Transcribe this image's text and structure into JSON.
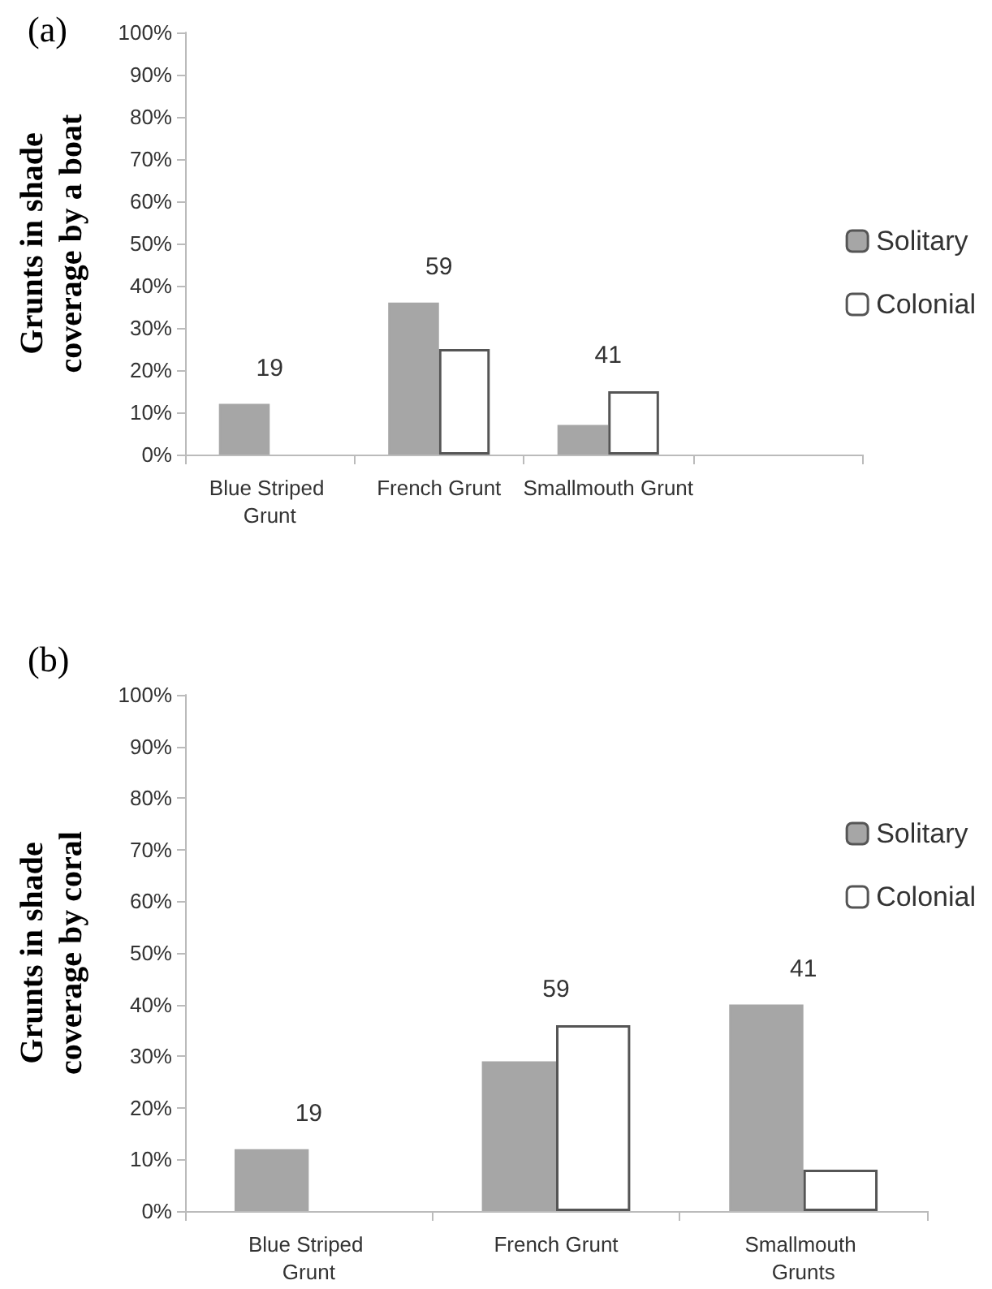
{
  "chart_data": [
    {
      "type": "bar",
      "title": "(a)",
      "ylabel": "Grunts in shade coverage by a boat",
      "categories": [
        "Blue Striped Grunt",
        "French Grunt",
        "Smallmouth Grunt",
        null
      ],
      "series": [
        {
          "name": "Solitary",
          "color": "#a6a6a6",
          "values": [
            12,
            36,
            7,
            null
          ]
        },
        {
          "name": "Colonial",
          "color": "#ffffff",
          "values": [
            null,
            25,
            15,
            null
          ]
        }
      ],
      "ylim": [
        0,
        100
      ],
      "yticks": [
        {
          "value": 0,
          "label": "0%"
        },
        {
          "value": 10,
          "label": "10%"
        },
        {
          "value": 20,
          "label": "20%"
        },
        {
          "value": 30,
          "label": "30%"
        },
        {
          "value": 40,
          "label": "40%"
        },
        {
          "value": 50,
          "label": "50%"
        },
        {
          "value": 60,
          "label": "60%"
        },
        {
          "value": 70,
          "label": "70%"
        },
        {
          "value": 80,
          "label": "80%"
        },
        {
          "value": 90,
          "label": "90%"
        },
        {
          "value": 100,
          "label": "100%"
        }
      ],
      "annotations": [
        "19",
        "59",
        "41"
      ],
      "grid": false,
      "legend": "right"
    },
    {
      "type": "bar",
      "title": "(b)",
      "ylabel": "Grunts in shade coverage by coral",
      "categories": [
        "Blue Striped Grunt",
        "French Grunt",
        "Smallmouth Grunts"
      ],
      "series": [
        {
          "name": "Solitary",
          "color": "#a6a6a6",
          "values": [
            12,
            29,
            40
          ]
        },
        {
          "name": "Colonial",
          "color": "#ffffff",
          "values": [
            null,
            36,
            8
          ]
        }
      ],
      "ylim": [
        0,
        100
      ],
      "yticks": [
        {
          "value": 0,
          "label": "0%"
        },
        {
          "value": 10,
          "label": "10%"
        },
        {
          "value": 20,
          "label": "20%"
        },
        {
          "value": 30,
          "label": "30%"
        },
        {
          "value": 40,
          "label": "40%"
        },
        {
          "value": 50,
          "label": "50%"
        },
        {
          "value": 60,
          "label": "60%"
        },
        {
          "value": 70,
          "label": "70%"
        },
        {
          "value": 80,
          "label": "80%"
        },
        {
          "value": 90,
          "label": "90%"
        },
        {
          "value": 100,
          "label": "100%"
        }
      ],
      "annotations": [
        "19",
        "59",
        "41"
      ],
      "grid": false,
      "legend": "right"
    }
  ]
}
